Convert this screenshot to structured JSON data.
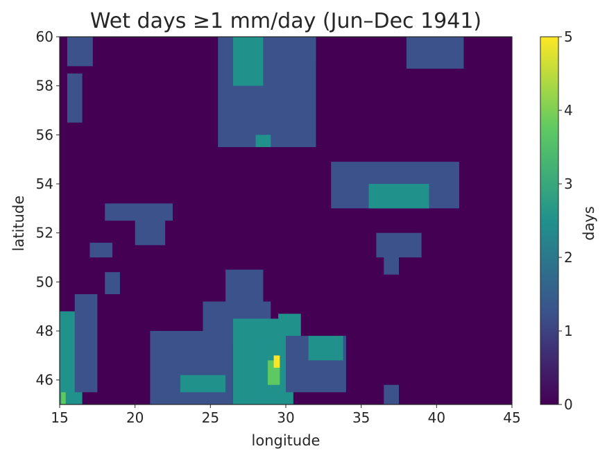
{
  "chart_data": {
    "type": "heatmap",
    "title": "Wet days ≥1 mm/day (Jun–Dec 1941)",
    "xlabel": "longitude",
    "ylabel": "latitude",
    "xlim": [
      15,
      45
    ],
    "ylim": [
      45,
      60
    ],
    "xticks": [
      "15",
      "20",
      "25",
      "30",
      "35",
      "40",
      "45"
    ],
    "yticks": [
      "46",
      "48",
      "50",
      "52",
      "54",
      "56",
      "58",
      "60"
    ],
    "colorbar": {
      "label": "days",
      "range": [
        0,
        5
      ],
      "ticks": [
        "0",
        "1",
        "2",
        "3",
        "4",
        "5"
      ],
      "colormap": [
        "#440154",
        "#3b528b",
        "#21918c",
        "#5ec962",
        "#fde725"
      ]
    },
    "grid": false,
    "regions": [
      {
        "lon": [
          15.0,
          16.5
        ],
        "lat": [
          45.0,
          48.8
        ],
        "value": 2
      },
      {
        "lon": [
          15.0,
          15.6
        ],
        "lat": [
          45.0,
          47.5
        ],
        "value": 3
      },
      {
        "lon": [
          15.1,
          15.4
        ],
        "lat": [
          45.0,
          45.5
        ],
        "value": 4
      },
      {
        "lon": [
          16.0,
          17.5
        ],
        "lat": [
          45.5,
          49.5
        ],
        "value": 1
      },
      {
        "lon": [
          15.5,
          17.2
        ],
        "lat": [
          58.8,
          60.0
        ],
        "value": 1
      },
      {
        "lon": [
          15.5,
          16.5
        ],
        "lat": [
          56.5,
          58.5
        ],
        "value": 1
      },
      {
        "lon": [
          18.0,
          19.0
        ],
        "lat": [
          49.5,
          50.4
        ],
        "value": 1
      },
      {
        "lon": [
          17.0,
          18.5
        ],
        "lat": [
          51.0,
          51.6
        ],
        "value": 1
      },
      {
        "lon": [
          18.0,
          22.5
        ],
        "lat": [
          52.5,
          53.2
        ],
        "value": 1
      },
      {
        "lon": [
          20.0,
          22.0
        ],
        "lat": [
          51.5,
          52.5
        ],
        "value": 1
      },
      {
        "lon": [
          21.0,
          26.5
        ],
        "lat": [
          45.0,
          48.0
        ],
        "value": 1
      },
      {
        "lon": [
          23.0,
          26.0
        ],
        "lat": [
          45.5,
          46.2
        ],
        "value": 2
      },
      {
        "lon": [
          24.5,
          29.0
        ],
        "lat": [
          47.5,
          49.2
        ],
        "value": 1
      },
      {
        "lon": [
          26.5,
          30.5
        ],
        "lat": [
          45.0,
          48.5
        ],
        "value": 2
      },
      {
        "lon": [
          28.0,
          29.8
        ],
        "lat": [
          45.3,
          47.5
        ],
        "value": 3
      },
      {
        "lon": [
          28.8,
          29.6
        ],
        "lat": [
          45.8,
          46.8
        ],
        "value": 4
      },
      {
        "lon": [
          29.2,
          29.6
        ],
        "lat": [
          46.5,
          47.0
        ],
        "value": 5
      },
      {
        "lon": [
          29.5,
          31.0
        ],
        "lat": [
          47.0,
          48.7
        ],
        "value": 2
      },
      {
        "lon": [
          30.0,
          34.0
        ],
        "lat": [
          45.5,
          47.8
        ],
        "value": 1
      },
      {
        "lon": [
          31.5,
          33.8
        ],
        "lat": [
          46.8,
          47.8
        ],
        "value": 2
      },
      {
        "lon": [
          27.0,
          28.0
        ],
        "lat": [
          49.5,
          50.2
        ],
        "value": 2
      },
      {
        "lon": [
          26.0,
          28.5
        ],
        "lat": [
          48.8,
          50.5
        ],
        "value": 1
      },
      {
        "lon": [
          36.5,
          37.5
        ],
        "lat": [
          45.0,
          45.8
        ],
        "value": 1
      },
      {
        "lon": [
          25.5,
          32.0
        ],
        "lat": [
          55.5,
          60.0
        ],
        "value": 1
      },
      {
        "lon": [
          26.5,
          28.5
        ],
        "lat": [
          58.0,
          60.0
        ],
        "value": 2
      },
      {
        "lon": [
          27.5,
          28.0
        ],
        "lat": [
          58.5,
          59.0
        ],
        "value": 3
      },
      {
        "lon": [
          28.0,
          29.0
        ],
        "lat": [
          55.5,
          56.0
        ],
        "value": 2
      },
      {
        "lon": [
          29.5,
          32.0
        ],
        "lat": [
          59.0,
          60.0
        ],
        "value": 1
      },
      {
        "lon": [
          38.0,
          41.8
        ],
        "lat": [
          58.7,
          60.0
        ],
        "value": 1
      },
      {
        "lon": [
          36.0,
          39.0
        ],
        "lat": [
          51.0,
          52.0
        ],
        "value": 1
      },
      {
        "lon": [
          33.0,
          41.5
        ],
        "lat": [
          53.0,
          54.9
        ],
        "value": 1
      },
      {
        "lon": [
          35.5,
          39.5
        ],
        "lat": [
          53.0,
          54.0
        ],
        "value": 2
      },
      {
        "lon": [
          36.5,
          37.5
        ],
        "lat": [
          50.3,
          51.8
        ],
        "value": 1
      }
    ]
  }
}
